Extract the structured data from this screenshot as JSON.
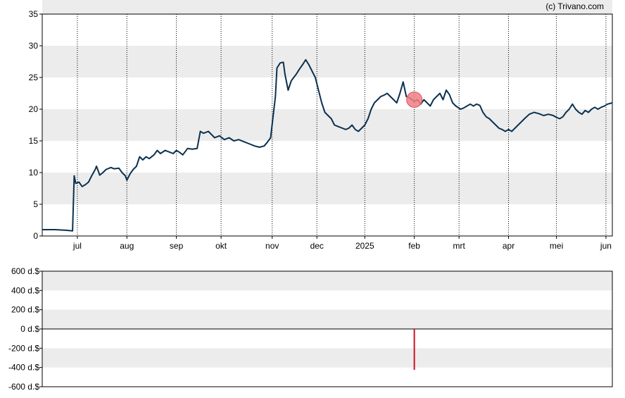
{
  "credit": "(c) Trivano.com",
  "colors": {
    "line": "#0b3150",
    "band": "#ececec",
    "marker_fill": "#f07f85",
    "marker_stroke": "#e0505a",
    "volume_bar": "#cc1122",
    "axis": "#000000"
  },
  "chart_data": [
    {
      "type": "line",
      "title": "",
      "xlabel": "",
      "ylabel": "",
      "ylim": [
        0,
        35
      ],
      "yticks": [
        "0",
        "5",
        "10",
        "15",
        "20",
        "25",
        "30",
        "35"
      ],
      "grid": "alternating horizontal bands, dotted vertical month lines",
      "month_ticks": [
        {
          "label": "jul",
          "x": 3
        },
        {
          "label": "aug",
          "x": 34
        },
        {
          "label": "sep",
          "x": 65
        },
        {
          "label": "okt",
          "x": 93
        },
        {
          "label": "nov",
          "x": 125
        },
        {
          "label": "dec",
          "x": 153
        },
        {
          "label": "2025",
          "x": 183
        },
        {
          "label": "feb",
          "x": 214
        },
        {
          "label": "mrt",
          "x": 242
        },
        {
          "label": "apr",
          "x": 273
        },
        {
          "label": "mei",
          "x": 303
        },
        {
          "label": "jun",
          "x": 334
        }
      ],
      "x_range": [
        -19,
        338
      ],
      "series": [
        {
          "points": [
            [
              -19,
              1.0
            ],
            [
              -11,
              1.0
            ],
            [
              -4,
              0.9
            ],
            [
              0,
              0.8
            ],
            [
              1,
              9.5
            ],
            [
              2,
              8.3
            ],
            [
              4,
              8.5
            ],
            [
              6,
              7.8
            ],
            [
              8,
              8.1
            ],
            [
              10,
              8.5
            ],
            [
              12,
              9.5
            ],
            [
              14,
              10.4
            ],
            [
              15,
              11.0
            ],
            [
              17,
              9.6
            ],
            [
              19,
              10.0
            ],
            [
              21,
              10.5
            ],
            [
              24,
              10.8
            ],
            [
              26,
              10.6
            ],
            [
              29,
              10.7
            ],
            [
              31,
              10.0
            ],
            [
              33,
              9.5
            ],
            [
              34,
              8.8
            ],
            [
              36,
              9.8
            ],
            [
              38,
              10.5
            ],
            [
              40,
              11.0
            ],
            [
              42,
              12.5
            ],
            [
              44,
              12.0
            ],
            [
              46,
              12.5
            ],
            [
              48,
              12.2
            ],
            [
              51,
              12.8
            ],
            [
              53,
              13.5
            ],
            [
              55,
              13.0
            ],
            [
              58,
              13.5
            ],
            [
              61,
              13.2
            ],
            [
              63,
              13.0
            ],
            [
              65,
              13.5
            ],
            [
              67,
              13.2
            ],
            [
              69,
              12.8
            ],
            [
              72,
              13.8
            ],
            [
              75,
              13.7
            ],
            [
              78,
              13.8
            ],
            [
              80,
              16.5
            ],
            [
              82,
              16.2
            ],
            [
              85,
              16.5
            ],
            [
              87,
              16.0
            ],
            [
              89,
              15.5
            ],
            [
              92,
              15.8
            ],
            [
              95,
              15.2
            ],
            [
              98,
              15.5
            ],
            [
              101,
              15.0
            ],
            [
              104,
              15.2
            ],
            [
              108,
              14.8
            ],
            [
              111,
              14.5
            ],
            [
              114,
              14.2
            ],
            [
              117,
              14.0
            ],
            [
              120,
              14.2
            ],
            [
              122,
              14.8
            ],
            [
              124,
              15.5
            ],
            [
              127,
              22.0
            ],
            [
              128,
              26.5
            ],
            [
              130,
              27.3
            ],
            [
              132,
              27.4
            ],
            [
              133,
              25.5
            ],
            [
              135,
              23.0
            ],
            [
              137,
              24.5
            ],
            [
              140,
              25.5
            ],
            [
              142,
              26.3
            ],
            [
              144,
              27.0
            ],
            [
              146,
              27.8
            ],
            [
              148,
              27.0
            ],
            [
              150,
              26.0
            ],
            [
              152,
              25.0
            ],
            [
              154,
              23.0
            ],
            [
              156,
              21.0
            ],
            [
              158,
              19.5
            ],
            [
              160,
              19.0
            ],
            [
              162,
              18.5
            ],
            [
              164,
              17.5
            ],
            [
              166,
              17.3
            ],
            [
              169,
              17.0
            ],
            [
              171,
              16.8
            ],
            [
              173,
              17.0
            ],
            [
              175,
              17.5
            ],
            [
              177,
              16.8
            ],
            [
              179,
              16.5
            ],
            [
              181,
              17.0
            ],
            [
              183,
              17.5
            ],
            [
              185,
              18.5
            ],
            [
              187,
              20.0
            ],
            [
              189,
              21.0
            ],
            [
              191,
              21.5
            ],
            [
              193,
              22.0
            ],
            [
              195,
              22.2
            ],
            [
              197,
              22.5
            ],
            [
              199,
              22.0
            ],
            [
              201,
              21.5
            ],
            [
              203,
              21.0
            ],
            [
              205,
              22.5
            ],
            [
              207,
              24.3
            ],
            [
              209,
              22.0
            ],
            [
              211,
              21.8
            ],
            [
              214,
              21.2
            ],
            [
              216,
              21.5
            ],
            [
              218,
              20.8
            ],
            [
              220,
              21.5
            ],
            [
              222,
              21.0
            ],
            [
              224,
              20.5
            ],
            [
              226,
              21.5
            ],
            [
              228,
              22.0
            ],
            [
              230,
              22.5
            ],
            [
              232,
              21.5
            ],
            [
              234,
              23.0
            ],
            [
              236,
              22.3
            ],
            [
              238,
              21.0
            ],
            [
              240,
              20.5
            ],
            [
              243,
              20.0
            ],
            [
              245,
              20.2
            ],
            [
              247,
              20.5
            ],
            [
              249,
              20.8
            ],
            [
              251,
              20.5
            ],
            [
              253,
              20.8
            ],
            [
              255,
              20.6
            ],
            [
              257,
              19.5
            ],
            [
              259,
              18.8
            ],
            [
              261,
              18.5
            ],
            [
              263,
              18.0
            ],
            [
              265,
              17.5
            ],
            [
              267,
              17.0
            ],
            [
              269,
              16.8
            ],
            [
              271,
              16.5
            ],
            [
              273,
              16.8
            ],
            [
              275,
              16.5
            ],
            [
              277,
              17.0
            ],
            [
              279,
              17.5
            ],
            [
              281,
              18.0
            ],
            [
              283,
              18.5
            ],
            [
              286,
              19.2
            ],
            [
              289,
              19.5
            ],
            [
              292,
              19.3
            ],
            [
              295,
              19.0
            ],
            [
              298,
              19.2
            ],
            [
              301,
              19.0
            ],
            [
              303,
              18.7
            ],
            [
              305,
              18.5
            ],
            [
              307,
              18.8
            ],
            [
              309,
              19.5
            ],
            [
              311,
              20.0
            ],
            [
              313,
              20.8
            ],
            [
              315,
              20.0
            ],
            [
              317,
              19.5
            ],
            [
              319,
              19.2
            ],
            [
              321,
              19.8
            ],
            [
              323,
              19.5
            ],
            [
              325,
              20.0
            ],
            [
              327,
              20.3
            ],
            [
              329,
              20.0
            ],
            [
              331,
              20.3
            ],
            [
              333,
              20.5
            ],
            [
              335,
              20.8
            ],
            [
              338,
              21.0
            ]
          ]
        }
      ],
      "marker": {
        "x": 214,
        "y": 21.5
      }
    },
    {
      "type": "bar",
      "title": "",
      "xlabel": "",
      "ylabel": "",
      "ylim": [
        -600,
        600
      ],
      "yticks": [
        "600 d.$",
        "400 d.$",
        "200 d.$",
        "0 d.$",
        "-200 d.$",
        "-400 d.$",
        "-600 d.$"
      ],
      "grid": "alternating horizontal bands",
      "bars": [
        {
          "x": 214,
          "value": -425
        }
      ]
    }
  ]
}
